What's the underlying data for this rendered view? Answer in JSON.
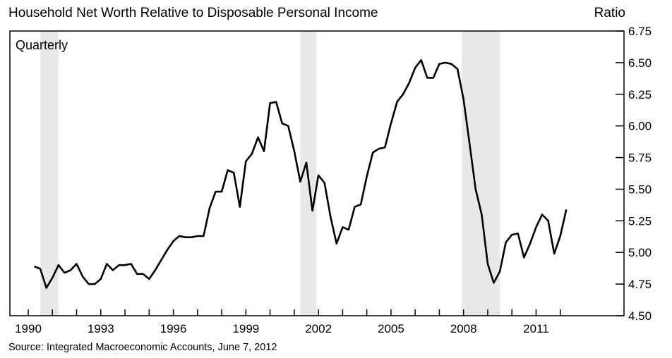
{
  "chart_data": {
    "type": "line",
    "title": "Household Net Worth Relative to Disposable Personal Income",
    "ylabel": "Ratio",
    "frequency_label": "Quarterly",
    "source": "Source: Integrated Macroeconomic Accounts, June 7, 2012",
    "ylim": [
      4.5,
      6.75
    ],
    "yticks": [
      "4.50",
      "4.75",
      "5.00",
      "5.25",
      "5.50",
      "5.75",
      "6.00",
      "6.25",
      "6.50",
      "6.75"
    ],
    "xticks": [
      "1990",
      "1993",
      "1996",
      "1999",
      "2002",
      "2005",
      "2008",
      "2011"
    ],
    "xlim": [
      1990,
      2012.75
    ],
    "recession_bands": [
      {
        "start": 1990.5,
        "end": 1991.25
      },
      {
        "start": 2001.25,
        "end": 2001.92
      },
      {
        "start": 2007.92,
        "end": 2009.5
      }
    ],
    "series": [
      {
        "x": [
          1990.25,
          1990.5,
          1990.75,
          1991.0,
          1991.25,
          1991.5,
          1991.75,
          1992.0,
          1992.25,
          1992.5,
          1992.75,
          1993.0,
          1993.25,
          1993.5,
          1993.75,
          1994.0,
          1994.25,
          1994.5,
          1994.75,
          1995.0,
          1995.25,
          1995.5,
          1995.75,
          1996.0,
          1996.25,
          1996.5,
          1996.75,
          1997.0,
          1997.25,
          1997.5,
          1997.75,
          1998.0,
          1998.25,
          1998.5,
          1998.75,
          1999.0,
          1999.25,
          1999.5,
          1999.75,
          2000.0,
          2000.25,
          2000.5,
          2000.75,
          2001.0,
          2001.25,
          2001.5,
          2001.75,
          2002.0,
          2002.25,
          2002.5,
          2002.75,
          2003.0,
          2003.25,
          2003.5,
          2003.75,
          2004.0,
          2004.25,
          2004.5,
          2004.75,
          2005.0,
          2005.25,
          2005.5,
          2005.75,
          2006.0,
          2006.25,
          2006.5,
          2006.75,
          2007.0,
          2007.25,
          2007.5,
          2007.75,
          2008.0,
          2008.25,
          2008.5,
          2008.75,
          2009.0,
          2009.25,
          2009.5,
          2009.75,
          2010.0,
          2010.25,
          2010.5,
          2010.75,
          2011.0,
          2011.25,
          2011.5,
          2011.75,
          2012.0,
          2012.25
        ],
        "values": [
          4.89,
          4.87,
          4.72,
          4.8,
          4.9,
          4.84,
          4.86,
          4.91,
          4.81,
          4.75,
          4.75,
          4.79,
          4.91,
          4.86,
          4.9,
          4.9,
          4.91,
          4.83,
          4.83,
          4.79,
          4.86,
          4.94,
          5.02,
          5.09,
          5.13,
          5.12,
          5.12,
          5.13,
          5.13,
          5.35,
          5.48,
          5.48,
          5.65,
          5.63,
          5.36,
          5.72,
          5.78,
          5.91,
          5.8,
          6.18,
          6.19,
          6.02,
          6.0,
          5.8,
          5.56,
          5.71,
          5.33,
          5.61,
          5.55,
          5.28,
          5.07,
          5.2,
          5.18,
          5.36,
          5.38,
          5.6,
          5.79,
          5.82,
          5.83,
          6.02,
          6.19,
          6.25,
          6.34,
          6.46,
          6.52,
          6.38,
          6.38,
          6.49,
          6.5,
          6.49,
          6.45,
          6.21,
          5.86,
          5.5,
          5.3,
          4.91,
          4.76,
          4.85,
          5.08,
          5.14,
          5.15,
          4.96,
          5.07,
          5.2,
          5.3,
          5.25,
          4.99,
          5.13,
          5.34
        ]
      }
    ]
  }
}
